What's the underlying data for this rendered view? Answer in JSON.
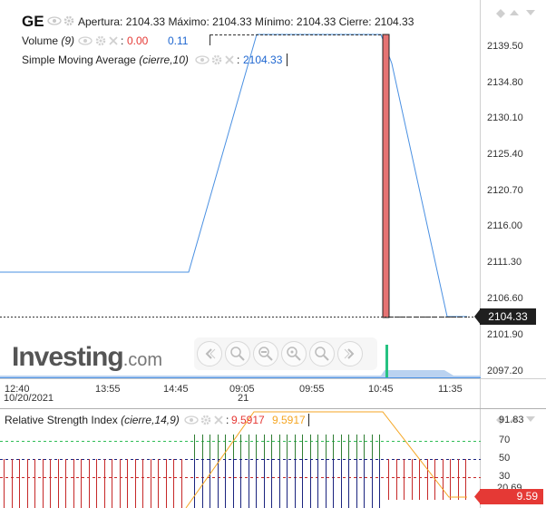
{
  "header": {
    "symbol": "GE",
    "open_label": "Apertura:",
    "open_value": "2104.33",
    "high_label": "Máximo:",
    "high_value": "2104.33",
    "low_label": "Mínimo:",
    "low_value": "2104.33",
    "close_label": "Cierre:",
    "close_value": "2104.33"
  },
  "indicators": {
    "volume": {
      "name": "Volume",
      "params": "(9)",
      "value_red": "0.00",
      "value_blue": "0.11"
    },
    "sma": {
      "name": "Simple Moving Average",
      "params": "(cierre,10)",
      "value": "2104.33"
    },
    "rsi": {
      "name": "Relative Strength Index",
      "params": "(cierre,14,9)",
      "value_red": "9.5917",
      "value_orange": "9.5917"
    }
  },
  "price_axis": {
    "ticks": [
      "2139.50",
      "2134.80",
      "2130.10",
      "2125.40",
      "2120.70",
      "2116.00",
      "2111.30",
      "2106.60",
      "2101.90",
      "2097.20"
    ],
    "current_price": "2104.33"
  },
  "time_axis": {
    "ticks": [
      "12:40",
      "13:55",
      "14:45",
      "09:05",
      "09:55",
      "10:45",
      "11:35"
    ],
    "date_label": "10/20/2021",
    "day_label": "21"
  },
  "rsi_axis": {
    "ticks": [
      "91.83",
      "70",
      "50",
      "30",
      "20.69"
    ],
    "current_value": "9.59"
  },
  "watermark": {
    "brand": "Investing",
    "suffix": ".com"
  },
  "colors": {
    "price_line": "#4a90e2",
    "red_bar": "#e57373",
    "volume_green": "#26c281",
    "rsi_red": "#c62828",
    "rsi_green": "#2e7d32",
    "rsi_blue": "#1a237e",
    "rsi_orange": "#f5a623",
    "badge_red": "#e53935"
  }
}
